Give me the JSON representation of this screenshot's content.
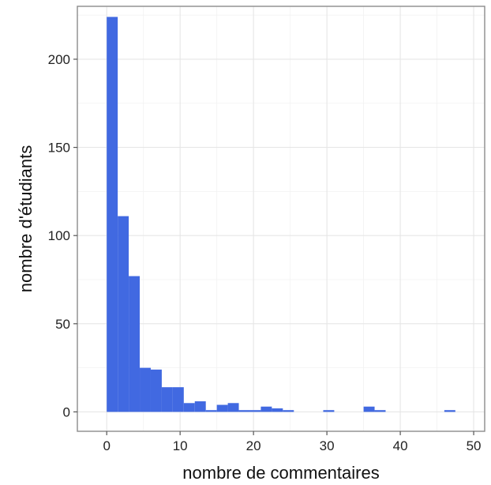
{
  "chart_data": {
    "type": "bar",
    "xlabel": "nombre de commentaires",
    "ylabel": "nombre d'étudiants",
    "xlim": [
      -4,
      51.5
    ],
    "ylim": [
      -11,
      230
    ],
    "xticks": [
      0,
      10,
      20,
      30,
      40,
      50
    ],
    "yticks": [
      0,
      50,
      100,
      150,
      200
    ],
    "xtick_labels": [
      "0",
      "10",
      "20",
      "30",
      "40",
      "50"
    ],
    "ytick_labels": [
      "0",
      "50",
      "100",
      "150",
      "200"
    ],
    "grid": true,
    "bar_color": "#4169E1",
    "bin_width": 1.5,
    "bins": [
      {
        "x0": 0,
        "x1": 1.5,
        "count": 224
      },
      {
        "x0": 1.5,
        "x1": 3,
        "count": 111
      },
      {
        "x0": 3,
        "x1": 4.5,
        "count": 77
      },
      {
        "x0": 4.5,
        "x1": 6,
        "count": 25
      },
      {
        "x0": 6,
        "x1": 7.5,
        "count": 24
      },
      {
        "x0": 7.5,
        "x1": 9,
        "count": 14
      },
      {
        "x0": 9,
        "x1": 10.5,
        "count": 14
      },
      {
        "x0": 10.5,
        "x1": 12,
        "count": 5
      },
      {
        "x0": 12,
        "x1": 13.5,
        "count": 6
      },
      {
        "x0": 13.5,
        "x1": 15,
        "count": 1
      },
      {
        "x0": 15,
        "x1": 16.5,
        "count": 4
      },
      {
        "x0": 16.5,
        "x1": 18,
        "count": 5
      },
      {
        "x0": 18,
        "x1": 19.5,
        "count": 1
      },
      {
        "x0": 19.5,
        "x1": 21,
        "count": 1
      },
      {
        "x0": 21,
        "x1": 22.5,
        "count": 3
      },
      {
        "x0": 22.5,
        "x1": 24,
        "count": 2
      },
      {
        "x0": 24,
        "x1": 25.5,
        "count": 1
      },
      {
        "x0": 29.5,
        "x1": 31,
        "count": 1
      },
      {
        "x0": 35,
        "x1": 36.5,
        "count": 3
      },
      {
        "x0": 36.5,
        "x1": 38,
        "count": 1
      },
      {
        "x0": 46,
        "x1": 47.5,
        "count": 1
      }
    ]
  }
}
